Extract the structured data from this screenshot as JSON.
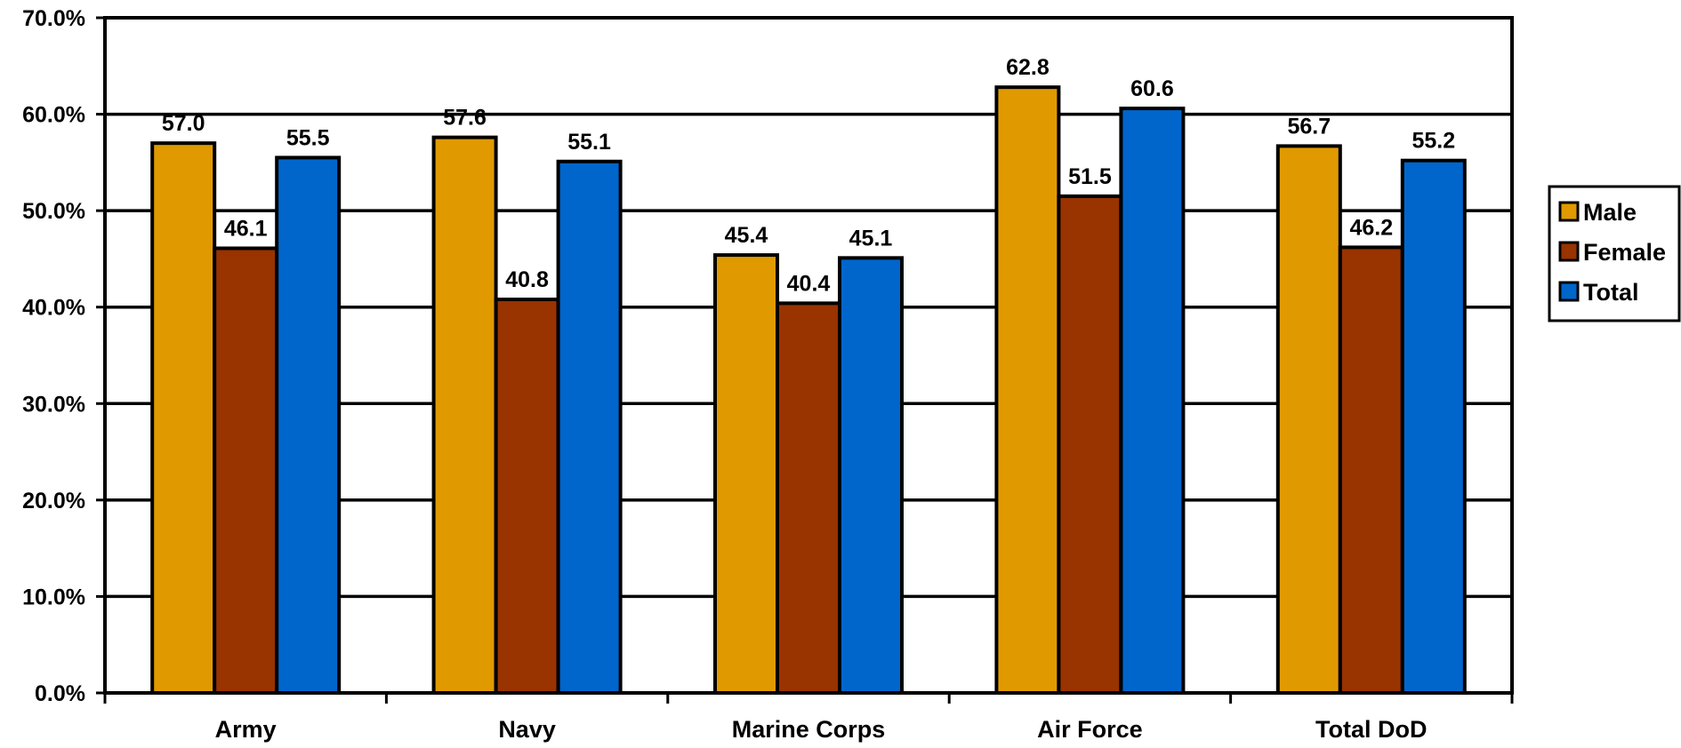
{
  "chart_data": {
    "type": "bar",
    "categories": [
      "Army",
      "Navy",
      "Marine Corps",
      "Air Force",
      "Total DoD"
    ],
    "series": [
      {
        "name": "Male",
        "color": "#E09A00",
        "values": [
          57.0,
          57.6,
          45.4,
          62.8,
          56.7
        ],
        "labels": [
          "57.0",
          "57.6",
          "45.4",
          "62.8",
          "56.7"
        ]
      },
      {
        "name": "Female",
        "color": "#993300",
        "values": [
          46.1,
          40.8,
          40.4,
          51.5,
          46.2
        ],
        "labels": [
          "46.1",
          "40.8",
          "40.4",
          "51.5",
          "46.2"
        ]
      },
      {
        "name": "Total",
        "color": "#0066CC",
        "values": [
          55.5,
          55.1,
          45.1,
          60.6,
          55.2
        ],
        "labels": [
          "55.5",
          "55.1",
          "45.1",
          "60.6",
          "55.2"
        ]
      }
    ],
    "y_ticks": [
      "0.0%",
      "10.0%",
      "20.0%",
      "30.0%",
      "40.0%",
      "50.0%",
      "60.0%",
      "70.0%"
    ],
    "ylim": [
      0,
      70
    ],
    "grid": true,
    "legend_position": "right"
  }
}
